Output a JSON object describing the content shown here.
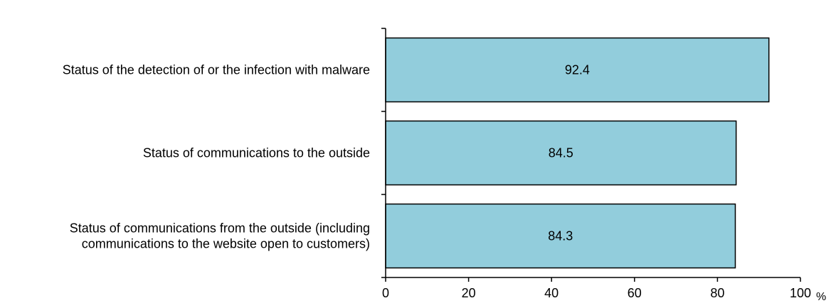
{
  "chart_data": {
    "type": "bar",
    "orientation": "horizontal",
    "categories": [
      [
        "Status of the detection of or the infection with malware"
      ],
      [
        "Status of communications to the outside"
      ],
      [
        "Status of communications from the outside (including",
        "communications to the website open to customers)"
      ]
    ],
    "values": [
      92.4,
      84.5,
      84.3
    ],
    "data_labels": [
      "92.4",
      "84.5",
      "84.3"
    ],
    "title": "",
    "xlabel": "",
    "ylabel": "",
    "xlim": [
      0,
      100
    ],
    "x_ticks": [
      0,
      20,
      40,
      60,
      80,
      100
    ],
    "x_tick_labels": [
      "0",
      "20",
      "40",
      "60",
      "80",
      "100"
    ],
    "unit": "%",
    "grid": false,
    "legend": "none",
    "bar_color": "#92cddc",
    "bar_edge_color": "#000000"
  }
}
